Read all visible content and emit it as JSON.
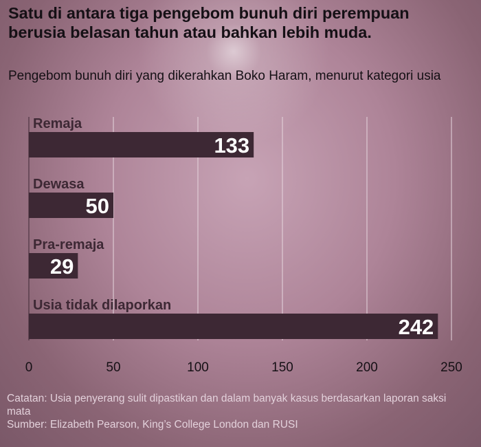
{
  "header": {
    "title": "Satu di antara tiga pengebom bunuh diri perempuan berusia belasan tahun atau bahkan lebih muda.",
    "subtitle": "Pengebom bunuh diri yang dikerahkan Boko Haram, menurut kategori usia"
  },
  "chart_data": {
    "type": "bar",
    "orientation": "horizontal",
    "title": "Satu di antara tiga pengebom bunuh diri perempuan berusia belasan tahun atau bahkan lebih muda.",
    "subtitle": "Pengebom bunuh diri yang dikerahkan Boko Haram, menurut kategori usia",
    "categories": [
      "Remaja",
      "Dewasa",
      "Pra-remaja",
      "Usia tidak dilaporkan"
    ],
    "values": [
      133,
      50,
      29,
      242
    ],
    "xlim": [
      0,
      250
    ],
    "xticks": [
      0,
      50,
      100,
      150,
      200,
      250
    ],
    "grid": true,
    "legend": "none",
    "colors": {
      "bar": "#3d2834",
      "value_label": "#ffffff",
      "category_label": "#3d2834",
      "grid": "#e6d6de",
      "tick_label": "#151015"
    }
  },
  "footer": {
    "note": "Catatan: Usia penyerang sulit dipastikan dan dalam banyak kasus berdasarkan laporan saksi mata",
    "source": "Sumber:  Elizabeth Pearson, King’s College London dan RUSI"
  }
}
